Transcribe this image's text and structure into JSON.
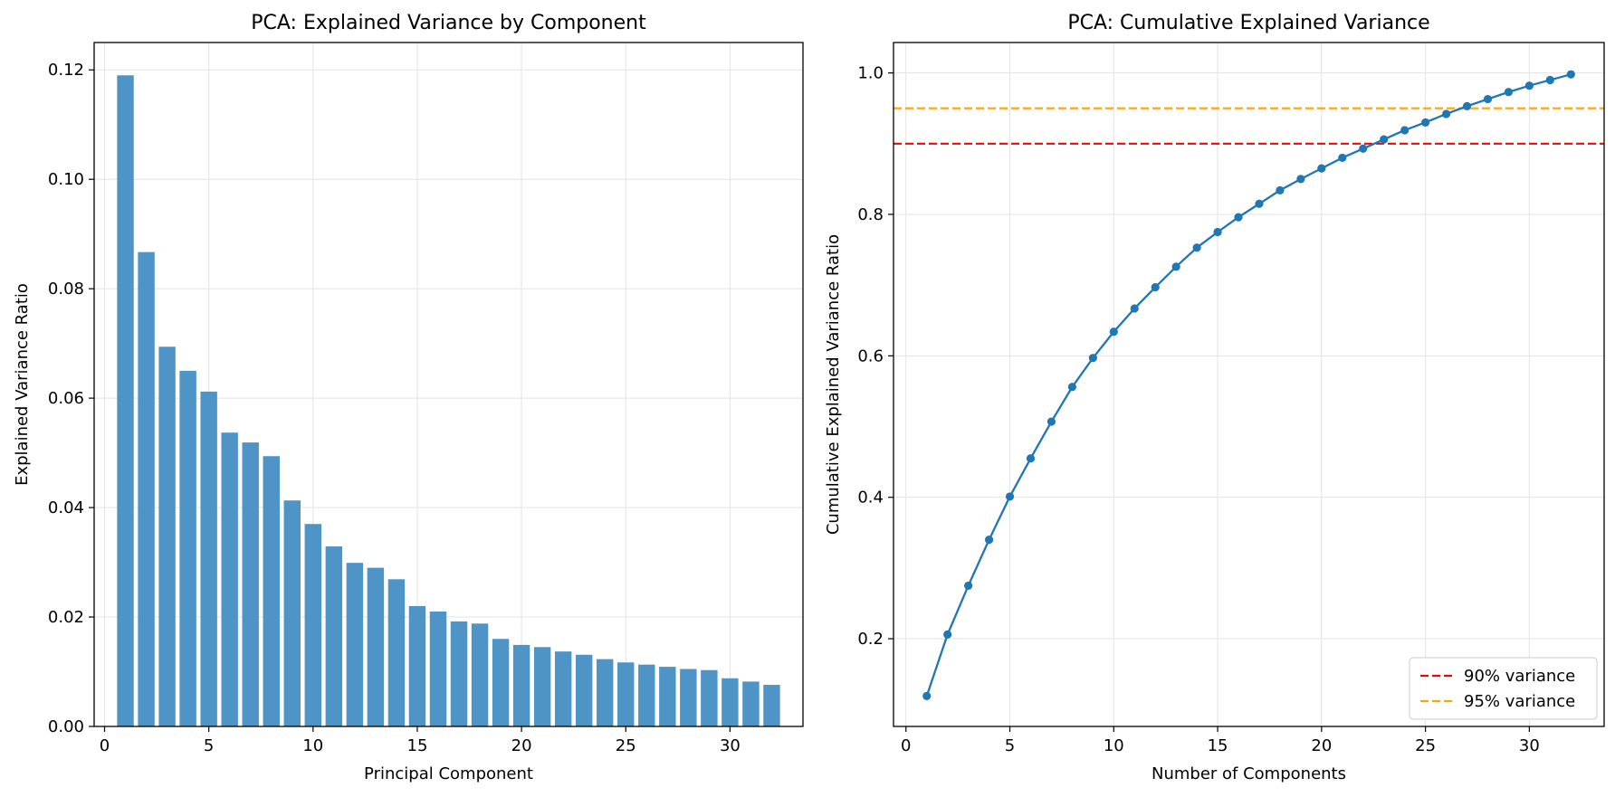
{
  "chart_data": [
    {
      "type": "bar",
      "title": "PCA: Explained Variance by Component",
      "xlabel": "Principal Component",
      "ylabel": "Explained Variance Ratio",
      "xlim": [
        -0.5,
        33.5
      ],
      "ylim": [
        0,
        0.125
      ],
      "xticks": [
        0,
        5,
        10,
        15,
        20,
        25,
        30
      ],
      "yticks": [
        0.0,
        0.02,
        0.04,
        0.06,
        0.08,
        0.1,
        0.12
      ],
      "ytick_decimals": 2,
      "grid": true,
      "bar_color": "#4f94c6",
      "x": [
        1,
        2,
        3,
        4,
        5,
        6,
        7,
        8,
        9,
        10,
        11,
        12,
        13,
        14,
        15,
        16,
        17,
        18,
        19,
        20,
        21,
        22,
        23,
        24,
        25,
        26,
        27,
        28,
        29,
        30,
        31,
        32
      ],
      "values": [
        0.119,
        0.0867,
        0.0694,
        0.065,
        0.0612,
        0.0537,
        0.0519,
        0.0494,
        0.0413,
        0.037,
        0.0329,
        0.0299,
        0.029,
        0.0269,
        0.022,
        0.021,
        0.0192,
        0.0188,
        0.016,
        0.0149,
        0.0145,
        0.0137,
        0.0131,
        0.0123,
        0.0117,
        0.0113,
        0.0109,
        0.0105,
        0.0103,
        0.0088,
        0.0082,
        0.0076
      ]
    },
    {
      "type": "line",
      "title": "PCA: Cumulative Explained Variance",
      "xlabel": "Number of Components",
      "ylabel": "Cumulative Explained Variance Ratio",
      "xlim": [
        -0.6,
        33.6
      ],
      "ylim": [
        0.076,
        1.043
      ],
      "xticks": [
        0,
        5,
        10,
        15,
        20,
        25,
        30
      ],
      "yticks": [
        0.2,
        0.4,
        0.6,
        0.8,
        1.0
      ],
      "ytick_decimals": 1,
      "grid": true,
      "line_color": "#1f77b4",
      "x": [
        1,
        2,
        3,
        4,
        5,
        6,
        7,
        8,
        9,
        10,
        11,
        12,
        13,
        14,
        15,
        16,
        17,
        18,
        19,
        20,
        21,
        22,
        23,
        24,
        25,
        26,
        27,
        28,
        29,
        30,
        31,
        32
      ],
      "values": [
        0.119,
        0.206,
        0.275,
        0.34,
        0.401,
        0.455,
        0.507,
        0.556,
        0.597,
        0.634,
        0.667,
        0.697,
        0.726,
        0.753,
        0.775,
        0.796,
        0.815,
        0.834,
        0.85,
        0.865,
        0.88,
        0.893,
        0.906,
        0.919,
        0.93,
        0.942,
        0.953,
        0.963,
        0.973,
        0.982,
        0.99,
        0.998
      ],
      "reference_lines": [
        {
          "name": "90% variance",
          "y": 0.9,
          "color": "#ff0000"
        },
        {
          "name": "95% variance",
          "y": 0.95,
          "color": "#ffa500"
        }
      ],
      "legend_position": "lower-right"
    }
  ]
}
